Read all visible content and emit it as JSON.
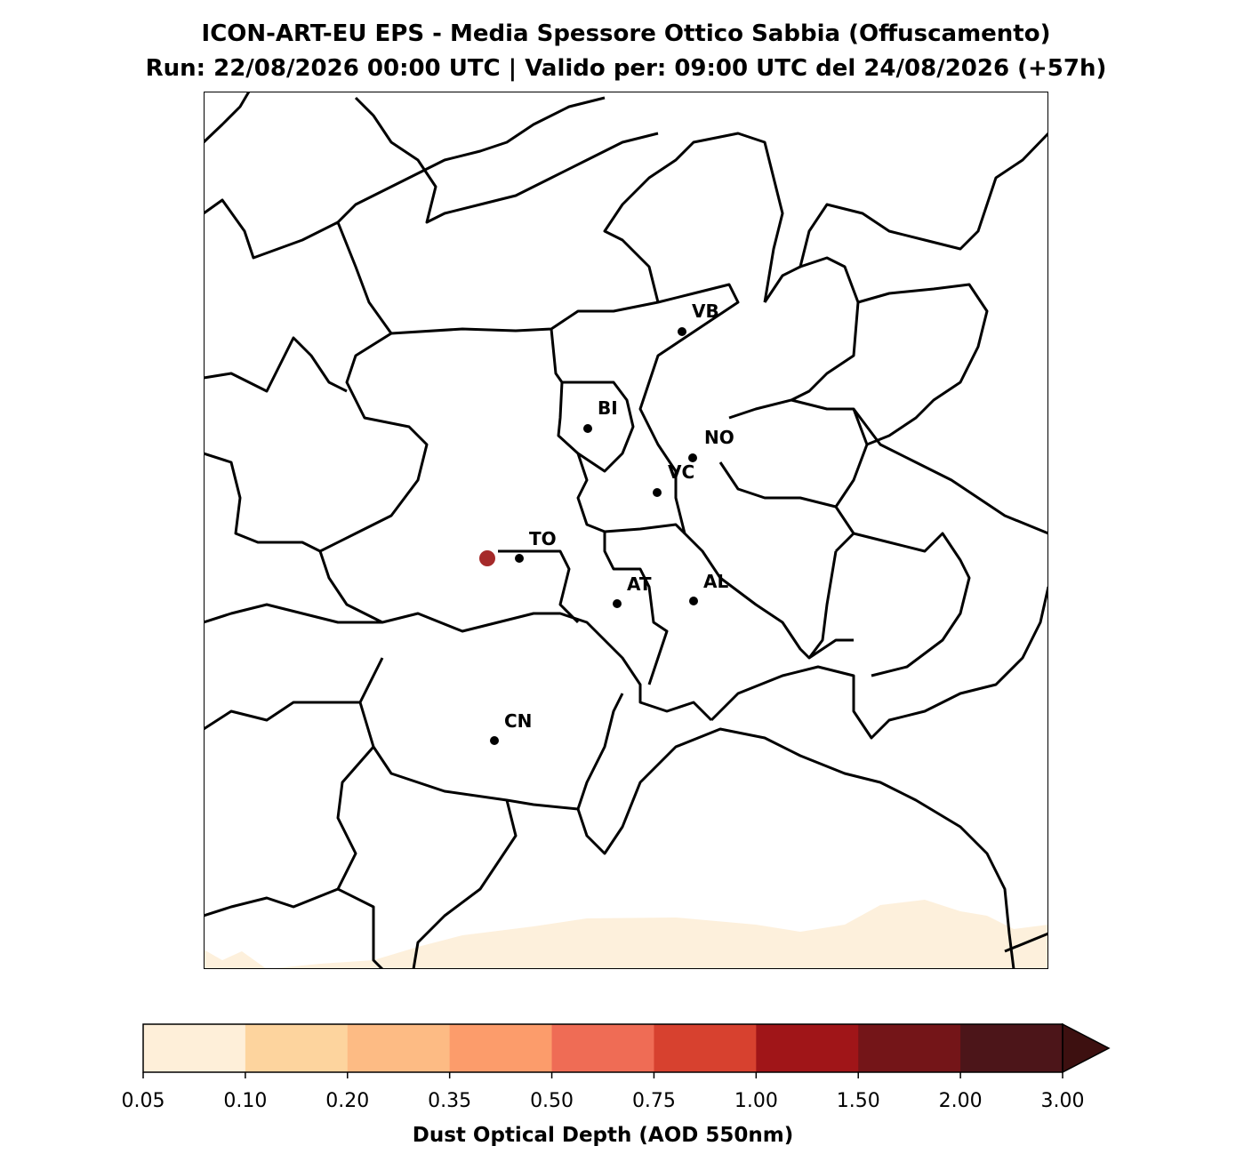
{
  "title": "ICON-ART-EU EPS - Media Spessore Ottico Sabbia (Offuscamento)",
  "subtitle": "Run: 22/08/2026 00:00 UTC | Valido per: 09:00 UTC del 24/08/2026 (+57h)",
  "cities": [
    {
      "label": "VB"
    },
    {
      "label": "BI"
    },
    {
      "label": "NO"
    },
    {
      "label": "VC"
    },
    {
      "label": "TO"
    },
    {
      "label": "AT"
    },
    {
      "label": "AL"
    },
    {
      "label": "CN"
    }
  ],
  "colorbar": {
    "label": "Dust Optical Depth (AOD 550nm)",
    "ticks": [
      0.05,
      {
        "value": 0.1,
        "label": "0.10"
      },
      {
        "value": 0.2,
        "label": "0.20"
      },
      0.35,
      {
        "value": 0.5,
        "label": "0.50"
      },
      0.75,
      {
        "value": 1,
        "label": "1.00"
      },
      {
        "value": 1.5,
        "label": "1.50"
      },
      {
        "value": 2,
        "label": "2.00"
      },
      {
        "value": 3,
        "label": "3.00"
      }
    ],
    "colors": [
      "#feefd9",
      "#fdd49e",
      "#fdbb84",
      "#fc9c6b",
      "#ef6c55",
      "#d7412f",
      "#a01518",
      "#741518",
      "#4c1519",
      "#3d1010"
    ]
  }
}
